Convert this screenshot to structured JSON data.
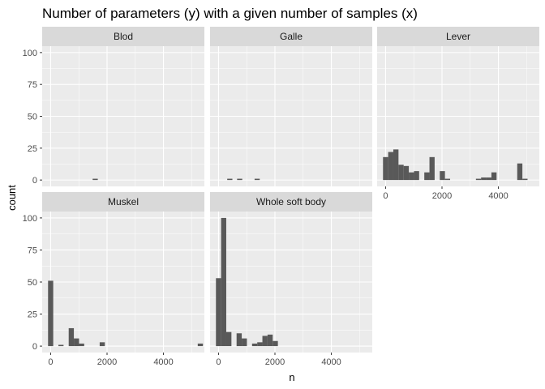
{
  "chart_data": {
    "type": "bar",
    "title": "Number of parameters (y) with a given number of samples (x)",
    "xlabel": "n",
    "ylabel": "count",
    "xlim": [
      -300,
      5450
    ],
    "ylim": [
      -5,
      105
    ],
    "x_ticks": [
      "0",
      "2000",
      "4000"
    ],
    "y_ticks": [
      "0",
      "25",
      "50",
      "75",
      "100"
    ],
    "bin_width": 183,
    "grid": true,
    "colors": {
      "bar": "#595959",
      "panel": "#ebebeb",
      "strip": "#d9d9d9",
      "grid": "#ffffff"
    },
    "panels": [
      {
        "name": "Blod",
        "bars": [
          {
            "x": 1580,
            "count": 1
          }
        ]
      },
      {
        "name": "Galle",
        "bars": [
          {
            "x": 400,
            "count": 1
          },
          {
            "x": 750,
            "count": 1
          },
          {
            "x": 1370,
            "count": 1
          }
        ]
      },
      {
        "name": "Lever",
        "bars": [
          {
            "x": 0,
            "count": 18
          },
          {
            "x": 183,
            "count": 22
          },
          {
            "x": 366,
            "count": 24
          },
          {
            "x": 549,
            "count": 12
          },
          {
            "x": 732,
            "count": 11
          },
          {
            "x": 915,
            "count": 6
          },
          {
            "x": 1098,
            "count": 7
          },
          {
            "x": 1464,
            "count": 6
          },
          {
            "x": 1647,
            "count": 18
          },
          {
            "x": 2013,
            "count": 7
          },
          {
            "x": 2196,
            "count": 1
          },
          {
            "x": 3294,
            "count": 1
          },
          {
            "x": 3477,
            "count": 2
          },
          {
            "x": 3660,
            "count": 2
          },
          {
            "x": 3843,
            "count": 6
          },
          {
            "x": 4758,
            "count": 13
          },
          {
            "x": 4941,
            "count": 1
          }
        ]
      },
      {
        "name": "Muskel",
        "bars": [
          {
            "x": 0,
            "count": 51
          },
          {
            "x": 366,
            "count": 1
          },
          {
            "x": 732,
            "count": 14
          },
          {
            "x": 915,
            "count": 6
          },
          {
            "x": 1098,
            "count": 2
          },
          {
            "x": 1830,
            "count": 3
          },
          {
            "x": 5307,
            "count": 2
          }
        ]
      },
      {
        "name": "Whole soft body",
        "bars": [
          {
            "x": 0,
            "count": 53
          },
          {
            "x": 183,
            "count": 100
          },
          {
            "x": 366,
            "count": 11
          },
          {
            "x": 732,
            "count": 10
          },
          {
            "x": 915,
            "count": 6
          },
          {
            "x": 1281,
            "count": 2
          },
          {
            "x": 1464,
            "count": 3
          },
          {
            "x": 1647,
            "count": 8
          },
          {
            "x": 1830,
            "count": 9
          },
          {
            "x": 2013,
            "count": 4
          }
        ]
      }
    ]
  }
}
